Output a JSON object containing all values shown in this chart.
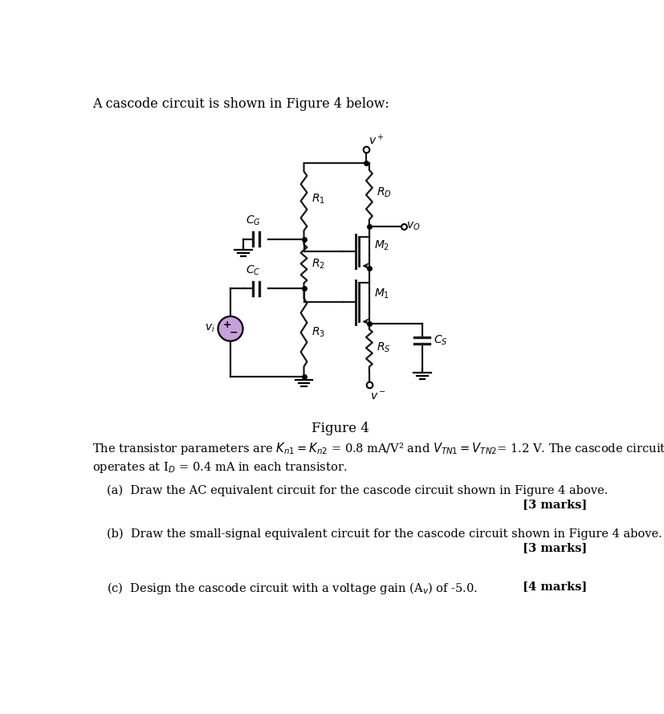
{
  "title_text": "A cascode circuit is shown in Figure 4 below:",
  "figure_caption": "Figure 4",
  "param_line1": "The transistor parameters are $K_{n1} = K_{n2}$ = 0.8 mA/V² and $V_{TN1} = V_{TN2}$= 1.2 V. The cascode circuit",
  "param_line2": "operates at Iᴅ = 0.4 mA in each transistor.",
  "qa": "(a)  Draw the AC equivalent circuit for the cascode circuit shown in Figure 4 above.",
  "qa_marks": "[3 marks]",
  "qb": "(b)  Draw the small-signal equivalent circuit for the cascode circuit shown in Figure 4 above.",
  "qb_marks": "[3 marks]",
  "qc": "(c)  Design the cascode circuit with a voltage gain (Aᵥ) of -5.0.",
  "qc_marks": "[4 marks]",
  "bg_color": "#ffffff",
  "line_color": "#1a1a1a",
  "source_color": "#c8a0dc"
}
